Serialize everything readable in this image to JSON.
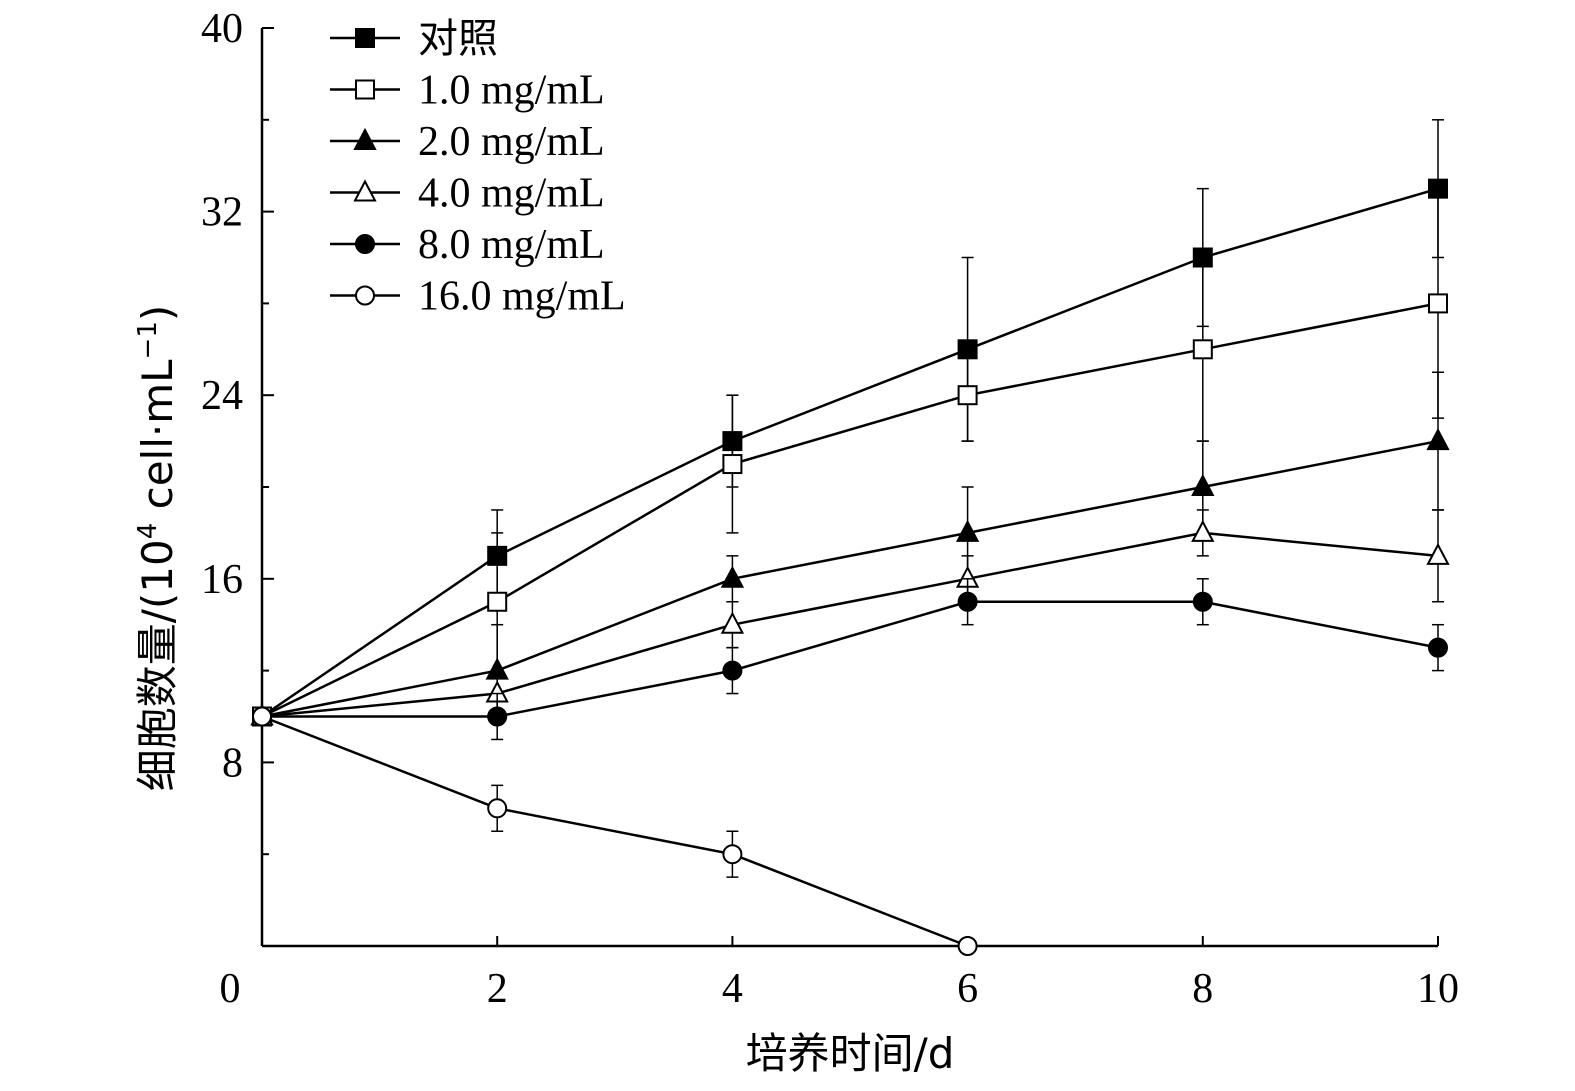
{
  "chart_data": {
    "type": "line",
    "xlabel": "培养时间/d",
    "ylabel_main": "细胞数量/(10",
    "ylabel_exp": "4",
    "ylabel_rest": " cell·mL",
    "ylabel_exp2": "−1",
    "ylabel_close": ")",
    "x_ticks": [
      "0",
      "2",
      "4",
      "6",
      "8",
      "10"
    ],
    "y_ticks": [
      "8",
      "16",
      "24",
      "32",
      "40"
    ],
    "xlim": [
      0,
      10
    ],
    "ylim": [
      0,
      40
    ],
    "legend_position": "top-left",
    "series": [
      {
        "name": "对照",
        "marker": "square-filled",
        "x": [
          0,
          2,
          4,
          6,
          8,
          10
        ],
        "y": [
          10,
          17,
          22,
          26,
          30,
          33
        ],
        "err": [
          0,
          2,
          2,
          4,
          3,
          3
        ]
      },
      {
        "name": "1.0 mg/mL",
        "marker": "square-open",
        "x": [
          0,
          2,
          4,
          6,
          8,
          10
        ],
        "y": [
          10,
          15,
          21,
          24,
          26,
          28
        ],
        "err": [
          0,
          3,
          3,
          2,
          4,
          5
        ]
      },
      {
        "name": "2.0 mg/mL",
        "marker": "triangle-filled",
        "x": [
          0,
          2,
          4,
          6,
          8,
          10
        ],
        "y": [
          10,
          12,
          16,
          18,
          20,
          22
        ],
        "err": [
          0,
          2,
          1,
          2,
          2,
          3
        ]
      },
      {
        "name": "4.0 mg/mL",
        "marker": "triangle-open",
        "x": [
          0,
          2,
          4,
          6,
          8,
          10
        ],
        "y": [
          10,
          11,
          14,
          16,
          18,
          17
        ],
        "err": [
          0,
          1,
          1,
          1,
          1,
          2
        ]
      },
      {
        "name": "8.0 mg/mL",
        "marker": "circle-filled",
        "x": [
          0,
          2,
          4,
          6,
          8,
          10
        ],
        "y": [
          10,
          10,
          12,
          15,
          15,
          13
        ],
        "err": [
          0,
          1,
          1,
          1,
          1,
          1
        ]
      },
      {
        "name": "16.0 mg/mL",
        "marker": "circle-open",
        "x": [
          0,
          2,
          4,
          6
        ],
        "y": [
          10,
          6,
          4,
          0
        ],
        "err": [
          0,
          1,
          1,
          0
        ]
      }
    ]
  }
}
